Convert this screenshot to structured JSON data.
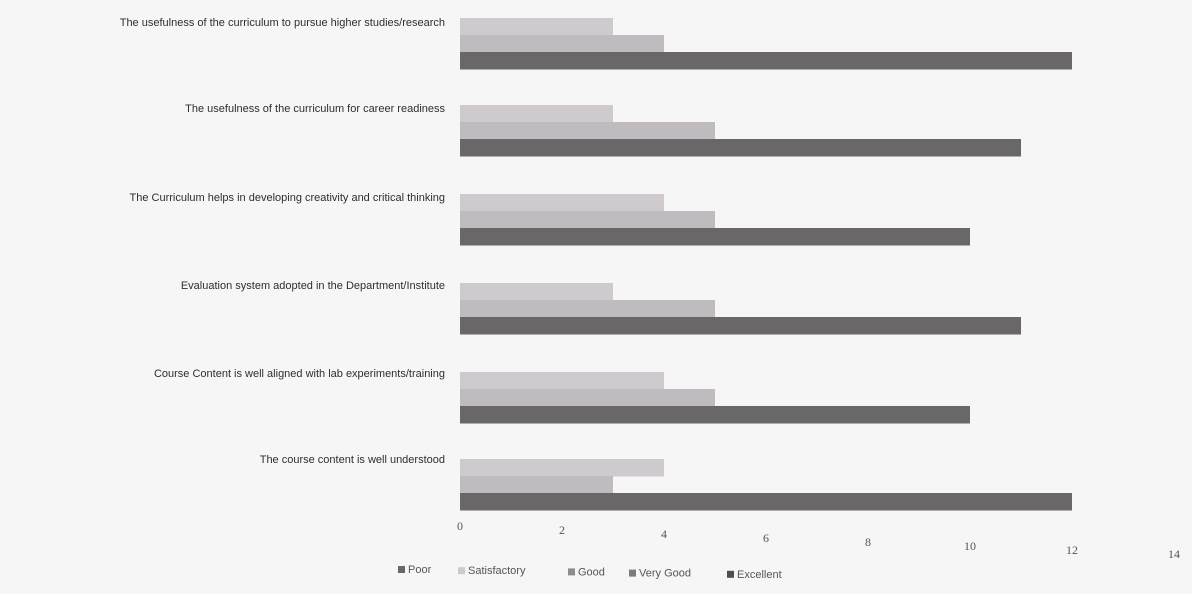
{
  "chart_data": {
    "type": "bar",
    "orientation": "horizontal",
    "categories": [
      "The usefulness of the curriculum to pursue higher studies/research",
      "The usefulness of the curriculum for career readiness",
      "The Curriculum helps in developing creativity and critical thinking",
      "Evaluation system adopted in the Department/Institute",
      "Course Content is well aligned with lab experiments/training",
      "The course content  is well understood"
    ],
    "series": [
      {
        "name": "Poor",
        "values": [
          0,
          0,
          0,
          0,
          0,
          0
        ],
        "color": "#9a9a9a"
      },
      {
        "name": "Satisfactory",
        "values": [
          3,
          3,
          4,
          3,
          4,
          4
        ],
        "color": "#cfcacd"
      },
      {
        "name": "Good",
        "values": [
          4,
          5,
          5,
          5,
          5,
          3
        ],
        "color": "#c0bbbf"
      },
      {
        "name": "Very Good",
        "values": [
          0,
          0,
          0,
          0,
          0,
          0
        ],
        "color": "#7d7a7c"
      },
      {
        "name": "Excellent",
        "values": [
          12,
          11,
          10,
          11,
          10,
          12
        ],
        "color": "#6a6768"
      }
    ],
    "xlim": [
      0,
      14
    ],
    "ticks": [
      0,
      2,
      4,
      6,
      8,
      10,
      12,
      14
    ],
    "grid": false,
    "legend": "bottom"
  }
}
